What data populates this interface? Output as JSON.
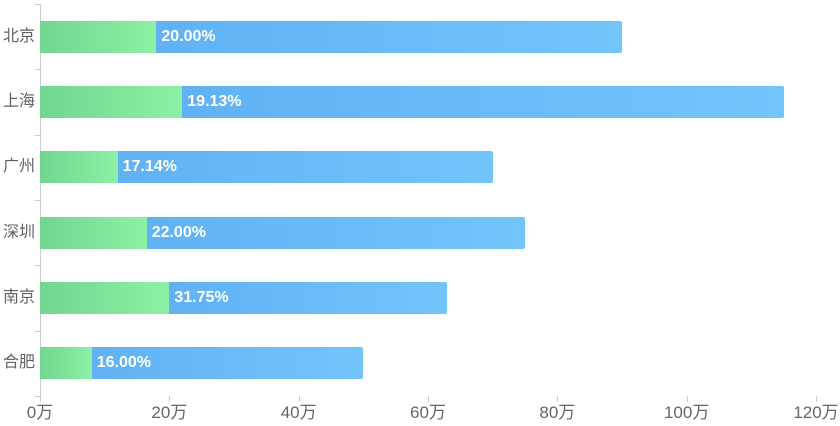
{
  "chart_data": {
    "type": "bar",
    "orientation": "horizontal",
    "title": "",
    "xlabel": "",
    "ylabel": "",
    "categories": [
      "北京",
      "上海",
      "广州",
      "深圳",
      "南京",
      "合肥"
    ],
    "series": [
      {
        "name": "green-segment",
        "values": [
          18,
          22,
          12,
          16.5,
          20,
          8
        ]
      },
      {
        "name": "blue-segment",
        "values": [
          72,
          93,
          58,
          58.5,
          43,
          42
        ]
      }
    ],
    "totals": [
      90,
      115,
      70,
      75,
      63,
      50
    ],
    "bar_labels": [
      "20.00%",
      "19.13%",
      "17.14%",
      "22.00%",
      "31.75%",
      "16.00%"
    ],
    "unit": "万",
    "xlim": [
      0,
      120
    ],
    "x_ticks": [
      0,
      20,
      40,
      60,
      80,
      100,
      120
    ],
    "x_tick_labels": [
      "0万",
      "20万",
      "40万",
      "60万",
      "80万",
      "100万",
      "120万"
    ],
    "grid": true,
    "legend": false,
    "colors": {
      "green_start": "#71d68f",
      "green_end": "#8cf0a5",
      "blue_start": "#60b2f4",
      "blue_end": "#73c4fb",
      "axis_line": "#cccccc",
      "grid_line": "#ececec",
      "axis_label": "#666666",
      "category_label": "#606266",
      "bar_label": "#ffffff",
      "background": "#ffffff"
    }
  }
}
